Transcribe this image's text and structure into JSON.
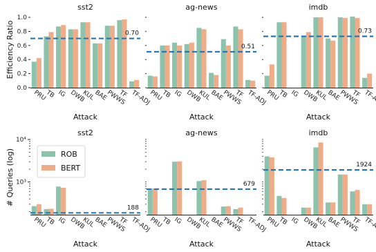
{
  "colors": {
    "rob": "#8dc3ad",
    "bert": "#eeac89",
    "ref": "#2876b3",
    "axis": "#222222"
  },
  "legend": {
    "placement": "upper-left",
    "entries": [
      "ROB",
      "BERT"
    ]
  },
  "chart_data": [
    {
      "type": "bar",
      "title": "sst2",
      "xlabel": "Attack",
      "ylabel": "Efficiency Ratio",
      "scale": "linear",
      "ylim": [
        0,
        1.05
      ],
      "yticks": [
        "0.0",
        "0.2",
        "0.4",
        "0.6",
        "0.8",
        "1.0"
      ],
      "categories": [
        "PRU",
        "TB",
        "IG",
        "DWB",
        "KUL",
        "BAE",
        "PWWS",
        "TF",
        "TF-ADJ"
      ],
      "series": [
        {
          "name": "ROB",
          "values": [
            0.37,
            0.73,
            0.87,
            0.83,
            0.93,
            0.63,
            0.88,
            0.96,
            0.09
          ]
        },
        {
          "name": "BERT",
          "values": [
            0.42,
            0.79,
            0.89,
            0.83,
            0.93,
            0.63,
            0.88,
            0.97,
            0.11
          ]
        }
      ],
      "reference": {
        "value": 0.7,
        "label": "0.70"
      }
    },
    {
      "type": "bar",
      "title": "ag-news",
      "xlabel": "Attack",
      "ylabel": "",
      "scale": "linear",
      "ylim": [
        0,
        1.05
      ],
      "categories": [
        "PRU",
        "TB",
        "IG",
        "DWB",
        "KUL",
        "BAE",
        "PWWS",
        "TF",
        "TF-ADJ"
      ],
      "series": [
        {
          "name": "ROB",
          "values": [
            0.17,
            0.6,
            0.64,
            0.62,
            0.85,
            0.21,
            0.69,
            0.87,
            0.11
          ]
        },
        {
          "name": "BERT",
          "values": [
            0.16,
            0.6,
            0.6,
            0.64,
            0.83,
            0.18,
            0.6,
            0.83,
            0.1
          ]
        }
      ],
      "reference": {
        "value": 0.51,
        "label": "0.51"
      }
    },
    {
      "type": "bar",
      "title": "imdb",
      "xlabel": "Attack",
      "ylabel": "",
      "scale": "linear",
      "ylim": [
        0,
        1.05
      ],
      "categories": [
        "PRU",
        "TB",
        "IG",
        "DWB",
        "KUL",
        "BAE",
        "PWWS",
        "TF",
        "TF-ADJ"
      ],
      "series": [
        {
          "name": "ROB",
          "values": [
            0.17,
            0.93,
            0,
            0.74,
            1.0,
            0.7,
            1.0,
            1.01,
            0.14
          ]
        },
        {
          "name": "BERT",
          "values": [
            0.33,
            0.93,
            0,
            0.79,
            1.0,
            0.67,
            0.99,
            0.99,
            0.2
          ]
        }
      ],
      "reference": {
        "value": 0.73,
        "label": "0.73"
      }
    },
    {
      "type": "bar",
      "title": "sst2",
      "xlabel": "Attack",
      "ylabel": "# Queries (log)",
      "scale": "log",
      "ylim": [
        170,
        10000
      ],
      "yticks": [
        "10³",
        "10⁴"
      ],
      "categories": [
        "PRU",
        "TB",
        "IG",
        "DWB",
        "KUL",
        "BAE",
        "PWWS",
        "TF",
        "TF-ADJ"
      ],
      "series": [
        {
          "name": "ROB",
          "values": [
            270,
            230,
            780,
            0,
            0,
            0,
            0,
            0,
            0
          ]
        },
        {
          "name": "BERT",
          "values": [
            300,
            235,
            730,
            0,
            0,
            0,
            0,
            0,
            0
          ]
        }
      ],
      "reference": {
        "value": 188,
        "label": "188"
      }
    },
    {
      "type": "bar",
      "title": "ag-news",
      "xlabel": "Attack",
      "ylabel": "",
      "scale": "log",
      "ylim": [
        170,
        10000
      ],
      "categories": [
        "PRU",
        "TB",
        "IG",
        "DWB",
        "KUL",
        "BAE",
        "PWWS",
        "TF",
        "TF-ADJ"
      ],
      "series": [
        {
          "name": "ROB",
          "values": [
            700,
            0,
            3000,
            0,
            1050,
            0,
            265,
            230,
            0
          ]
        },
        {
          "name": "BERT",
          "values": [
            700,
            0,
            3050,
            0,
            1100,
            0,
            270,
            250,
            0
          ]
        }
      ],
      "reference": {
        "value": 679,
        "label": "679"
      }
    },
    {
      "type": "bar",
      "title": "imdb",
      "xlabel": "Attack",
      "ylabel": "",
      "scale": "log",
      "ylim": [
        170,
        10000
      ],
      "categories": [
        "PRU",
        "TB",
        "IG",
        "DWB",
        "KUL",
        "BAE",
        "PWWS",
        "TF",
        "TF-ADJ"
      ],
      "series": [
        {
          "name": "ROB",
          "values": [
            4000,
            470,
            0,
            250,
            6500,
            330,
            1500,
            600,
            300
          ]
        },
        {
          "name": "BERT",
          "values": [
            3800,
            420,
            0,
            250,
            8500,
            330,
            1500,
            650,
            300
          ]
        }
      ],
      "reference": {
        "value": 1924,
        "label": "1924"
      }
    }
  ]
}
